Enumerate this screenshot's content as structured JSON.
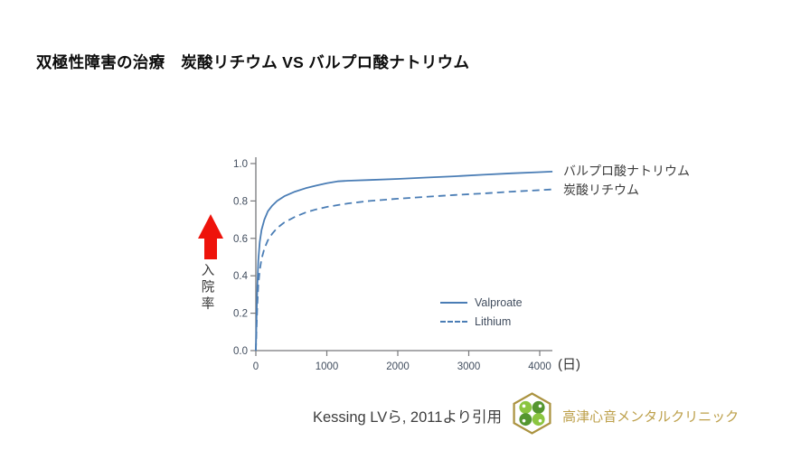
{
  "title": "双極性障害の治療　炭酸リチウム VS バルプロ酸ナトリウム",
  "chart": {
    "y_axis_label": "入院率",
    "end_labels": {
      "valproate": "バルプロ酸ナトリウム",
      "lithium": "炭酸リチウム"
    },
    "legend": {
      "valproate": "Valproate",
      "lithium": "Lithium"
    },
    "icons": {
      "up_arrow": "red-up-arrow"
    },
    "colors": {
      "line": "#4a7db5",
      "axis": "#77787b",
      "tick_text": "#414d5e",
      "arrow_red": "#ee130b",
      "label_text": "#3c3c3c"
    }
  },
  "chart_data": {
    "type": "line",
    "title": "",
    "xlabel": "(日)",
    "ylabel": "入院率",
    "x_unit_label": "(日)",
    "xlim": [
      0,
      4250
    ],
    "ylim": [
      0.0,
      1.0
    ],
    "x_ticks": [
      0,
      1000,
      2000,
      3000,
      4000
    ],
    "y_ticks": [
      0.0,
      0.2,
      0.4,
      0.6,
      0.8,
      1.0
    ],
    "grid": false,
    "legend_position": "inside-lower-right",
    "series": [
      {
        "name": "Valproate",
        "label_jp": "バルプロ酸ナトリウム",
        "style": "solid",
        "points": [
          [
            0,
            0
          ],
          [
            10,
            0.18
          ],
          [
            20,
            0.34
          ],
          [
            35,
            0.48
          ],
          [
            55,
            0.58
          ],
          [
            80,
            0.645
          ],
          [
            120,
            0.7
          ],
          [
            170,
            0.745
          ],
          [
            230,
            0.775
          ],
          [
            300,
            0.8
          ],
          [
            400,
            0.825
          ],
          [
            550,
            0.85
          ],
          [
            700,
            0.868
          ],
          [
            850,
            0.882
          ],
          [
            1000,
            0.895
          ],
          [
            1150,
            0.905
          ],
          [
            1300,
            0.908
          ],
          [
            1600,
            0.912
          ],
          [
            2000,
            0.918
          ],
          [
            2400,
            0.925
          ],
          [
            2800,
            0.932
          ],
          [
            3200,
            0.94
          ],
          [
            3600,
            0.948
          ],
          [
            4000,
            0.954
          ],
          [
            4180,
            0.957
          ]
        ]
      },
      {
        "name": "Lithium",
        "label_jp": "炭酸リチウム",
        "style": "dashed",
        "points": [
          [
            0,
            0
          ],
          [
            10,
            0.12
          ],
          [
            20,
            0.24
          ],
          [
            35,
            0.35
          ],
          [
            55,
            0.43
          ],
          [
            80,
            0.49
          ],
          [
            120,
            0.545
          ],
          [
            170,
            0.59
          ],
          [
            230,
            0.625
          ],
          [
            300,
            0.655
          ],
          [
            400,
            0.685
          ],
          [
            550,
            0.715
          ],
          [
            700,
            0.738
          ],
          [
            850,
            0.755
          ],
          [
            1000,
            0.768
          ],
          [
            1150,
            0.778
          ],
          [
            1300,
            0.787
          ],
          [
            1600,
            0.8
          ],
          [
            2000,
            0.812
          ],
          [
            2400,
            0.822
          ],
          [
            2800,
            0.832
          ],
          [
            3200,
            0.84
          ],
          [
            3600,
            0.85
          ],
          [
            4000,
            0.858
          ],
          [
            4180,
            0.862
          ]
        ]
      }
    ]
  },
  "footer": {
    "citation": "Kessing LVら, 2011より引用",
    "clinic_name": "高津心音メンタルクリニック",
    "logo": {
      "icon": "clover-hexagon",
      "hex_border": "#ab9340",
      "gold_text": "#bda04b",
      "leaf_light": "#8bc540",
      "leaf_dark": "#55962f"
    }
  }
}
